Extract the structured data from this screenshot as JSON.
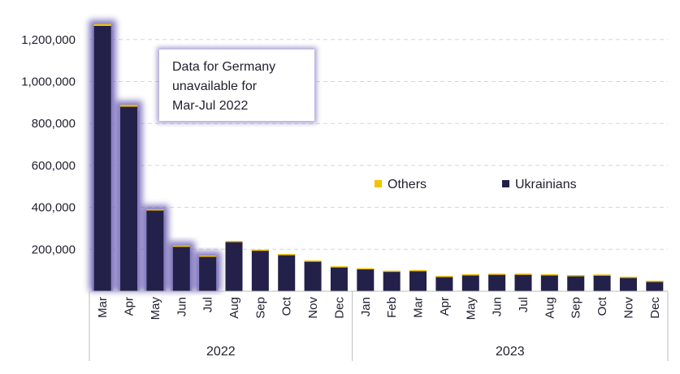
{
  "chart_data": {
    "type": "bar",
    "stacked": true,
    "title": "",
    "xlabel": "",
    "ylabel": "",
    "ylim": [
      0,
      1300000
    ],
    "yticks": [
      200000,
      400000,
      600000,
      800000,
      1000000,
      1200000
    ],
    "ytick_labels": [
      "200,000",
      "400,000",
      "600,000",
      "800,000",
      "1,000,000",
      "1,200,000"
    ],
    "grid": "horizontal dashed",
    "categories": [
      "Mar",
      "Apr",
      "May",
      "Jun",
      "Jul",
      "Aug",
      "Sep",
      "Oct",
      "Nov",
      "Dec",
      "Jan",
      "Feb",
      "Mar",
      "Apr",
      "May",
      "Jun",
      "Jul",
      "Aug",
      "Sep",
      "Oct",
      "Nov",
      "Dec"
    ],
    "year_groups": [
      {
        "label": "2022",
        "count": 10
      },
      {
        "label": "2023",
        "count": 12
      }
    ],
    "highlighted_categories": 5,
    "series": [
      {
        "name": "Ukrainians",
        "color": "#23214a",
        "values": [
          1265000,
          880000,
          385000,
          212000,
          165000,
          238000,
          197000,
          176000,
          145000,
          118000,
          109000,
          97000,
          100000,
          72000,
          80000,
          83000,
          83000,
          80000,
          76000,
          79000,
          68000,
          49000
        ]
      },
      {
        "name": "Others",
        "color": "#f5c200",
        "values": [
          9000,
          8000,
          6000,
          6000,
          5000,
          2000,
          1500,
          1500,
          1500,
          1000,
          1000,
          1000,
          1000,
          1000,
          1000,
          1000,
          1000,
          1000,
          1000,
          1000,
          1000,
          1000
        ]
      }
    ],
    "legend": [
      "Others",
      "Ukrainians"
    ],
    "legend_position": "center-right",
    "annotation": {
      "lines": [
        "Data for Germany",
        "unavailable for",
        "Mar-Jul 2022"
      ]
    }
  }
}
